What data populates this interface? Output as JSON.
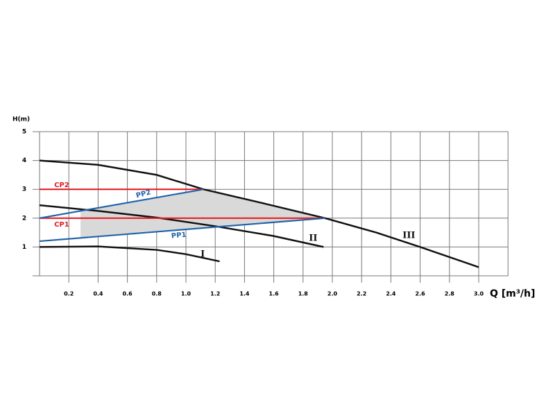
{
  "chart_data": {
    "type": "line",
    "y_label": "H(m)",
    "x_label": "Q [m³/h]",
    "xlim": [
      0,
      3.2
    ],
    "ylim": [
      0,
      5
    ],
    "xticks": [
      0.2,
      0.4,
      0.6,
      0.8,
      {
        "value": 1,
        "label": "1.0"
      },
      1.2,
      1.4,
      1.6,
      1.8,
      {
        "value": 2,
        "label": "2.0"
      },
      2.2,
      2.4,
      2.6,
      2.8,
      {
        "value": 3,
        "label": "3.0"
      }
    ],
    "yticks": [
      1,
      2,
      3,
      4,
      5
    ],
    "grid": true,
    "shaded_region": {
      "color": "#d9d9d9",
      "x": [
        0.28,
        1.12,
        1.5,
        1.95,
        0.28
      ],
      "y": [
        2.25,
        3.0,
        2.55,
        2.0,
        1.31
      ]
    },
    "series": [
      {
        "name": "III",
        "color": "#111111",
        "x": [
          0,
          0.4,
          0.8,
          1.12,
          1.5,
          1.95,
          2.3,
          2.6,
          3.0
        ],
        "values": [
          4,
          3.85,
          3.5,
          3.0,
          2.55,
          2.0,
          1.5,
          1.0,
          0.3
        ]
      },
      {
        "name": "II",
        "color": "#111111",
        "x": [
          0,
          0.4,
          0.8,
          1.2,
          1.6,
          1.94
        ],
        "values": [
          2.45,
          2.25,
          2.02,
          1.72,
          1.38,
          1.0
        ]
      },
      {
        "name": "I",
        "color": "#111111",
        "x": [
          0,
          0.4,
          0.8,
          1.0,
          1.23
        ],
        "values": [
          1.0,
          1.02,
          0.9,
          0.75,
          0.5
        ]
      },
      {
        "name": "CP2",
        "color": "#e31e24",
        "x": [
          0,
          1.12
        ],
        "values": [
          3,
          3
        ]
      },
      {
        "name": "CP1",
        "color": "#e31e24",
        "x": [
          0,
          1.95
        ],
        "values": [
          2,
          2
        ]
      },
      {
        "name": "PP2",
        "color": "#1f63a8",
        "x": [
          0,
          1.12
        ],
        "values": [
          2,
          3
        ]
      },
      {
        "name": "PP1",
        "color": "#1f63a8",
        "x": [
          0,
          1.95
        ],
        "values": [
          1.2,
          2
        ]
      }
    ]
  }
}
